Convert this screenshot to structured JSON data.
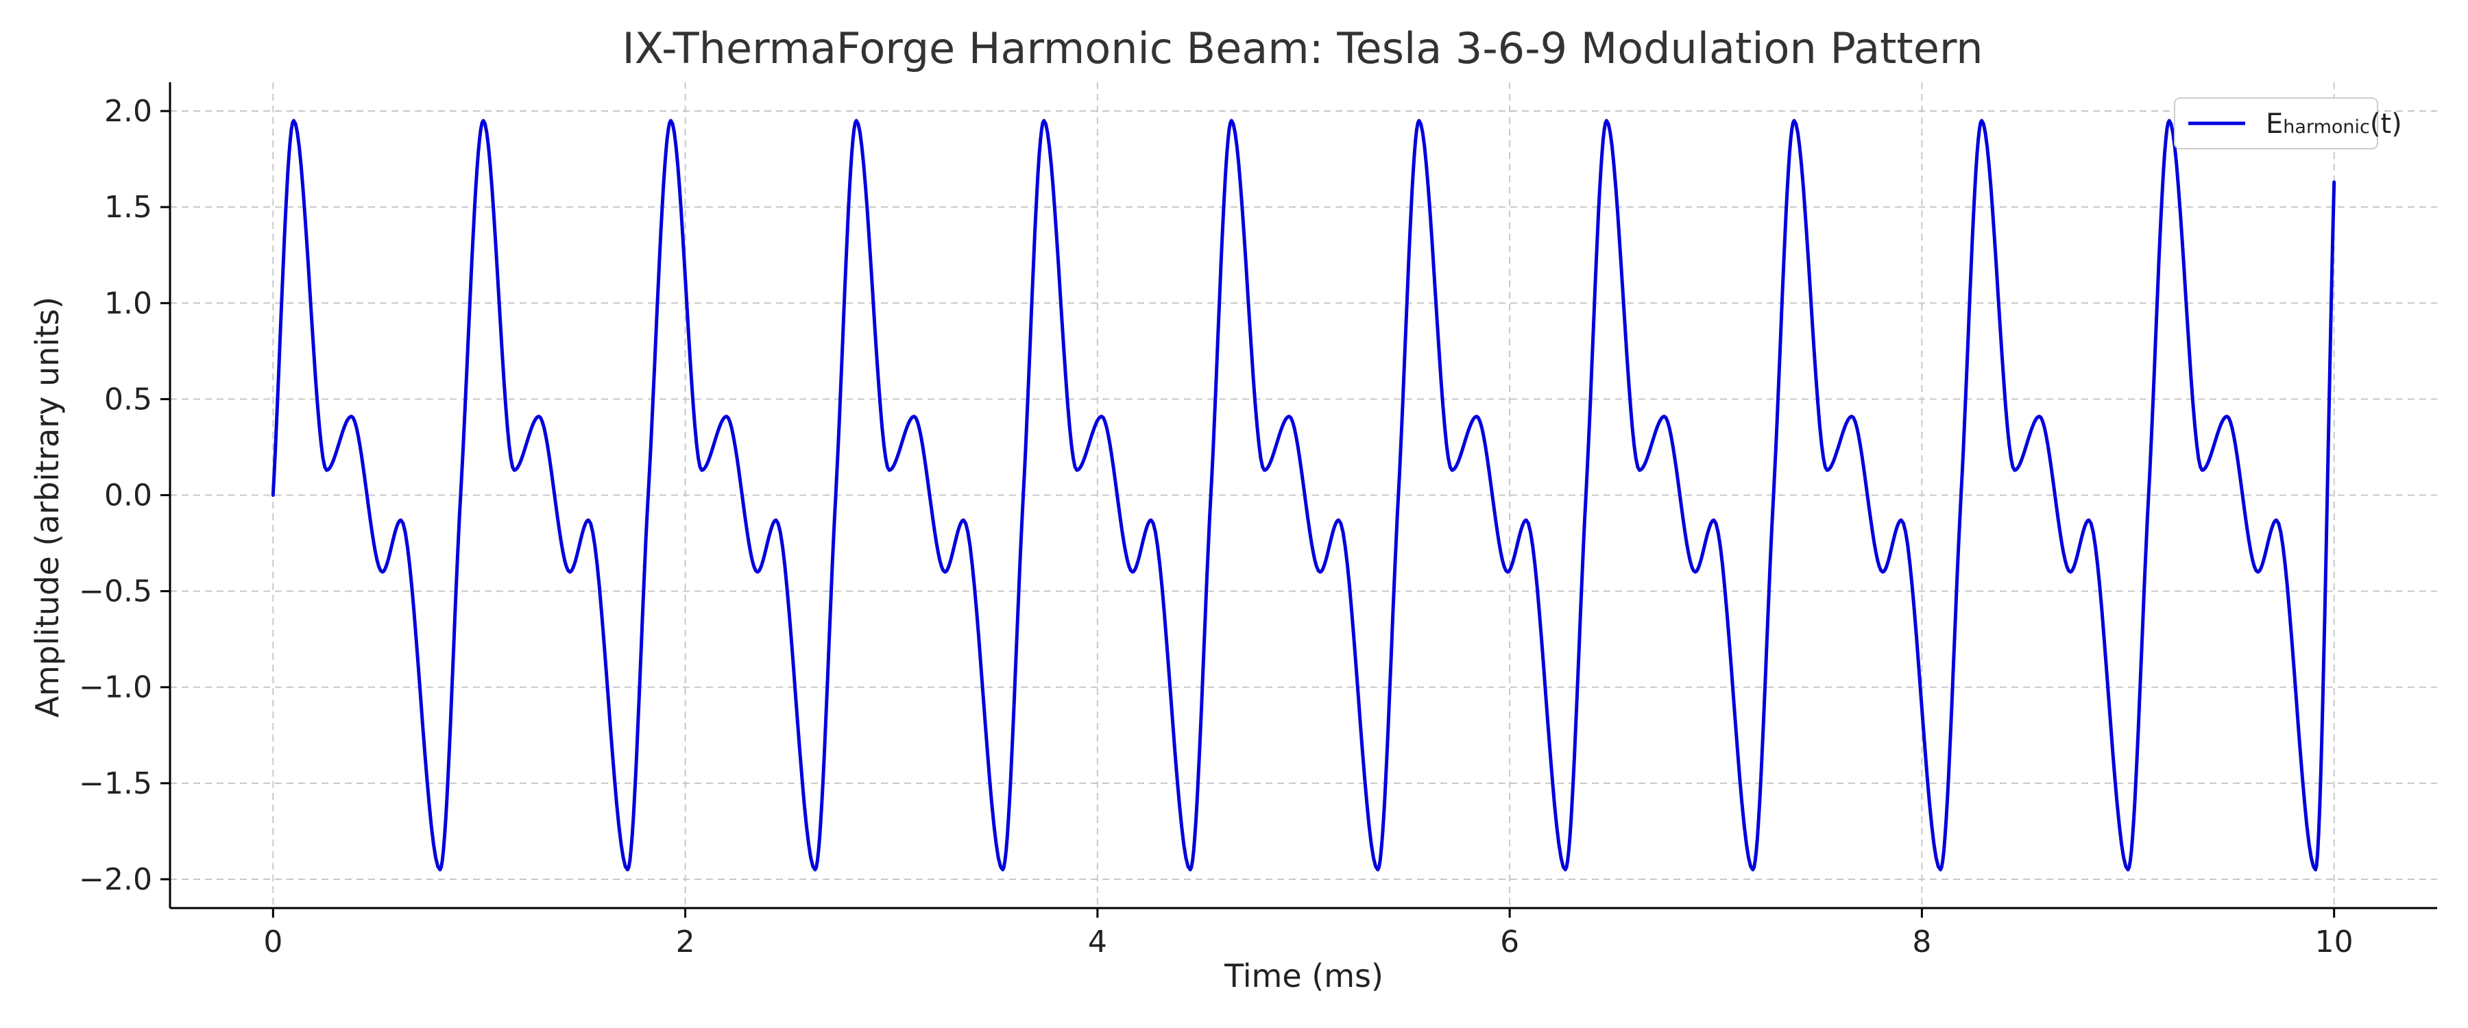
{
  "chart_data": {
    "type": "line",
    "title": "IX-ThermaForge Harmonic Beam: Tesla 3-6-9 Modulation Pattern",
    "xlabel": "Time (ms)",
    "ylabel": "Amplitude (arbitrary units)",
    "xlim": [
      -0.5,
      10.5
    ],
    "ylim": [
      -2.15,
      2.15
    ],
    "xticks": [
      0,
      2,
      4,
      6,
      8,
      10
    ],
    "xtick_labels": [
      "0",
      "2",
      "4",
      "6",
      "8",
      "10"
    ],
    "yticks": [
      2.0,
      1.5,
      1.0,
      0.5,
      0.0,
      -0.5,
      -1.0,
      -1.5,
      -2.0
    ],
    "ytick_labels": [
      "2.0",
      "1.5",
      "1.0",
      "0.5",
      "0.0",
      "−0.5",
      "−1.0",
      "−1.5",
      "−2.0"
    ],
    "grid": true,
    "legend_position": "top-right",
    "series": [
      {
        "name": "E",
        "name_sub": "harmonic",
        "name_tail": "(t)",
        "color": "#0000dd",
        "x": [
          0,
          0.1,
          0.26,
          0.38,
          0.53,
          0.62,
          0.81,
          0.91,
          1.02,
          1.17,
          1.29,
          1.44,
          1.53,
          1.72,
          1.82,
          1.93,
          2.08,
          2.2,
          2.35,
          2.44,
          2.63,
          2.73,
          2.83,
          2.99,
          3.11,
          3.26,
          3.35,
          3.54,
          3.64,
          3.74,
          3.9,
          4.02,
          4.17,
          4.26,
          4.45,
          4.55,
          4.65,
          4.81,
          4.93,
          5.08,
          5.17,
          5.36,
          5.46,
          5.56,
          5.72,
          5.84,
          5.99,
          6.08,
          6.27,
          6.37,
          6.47,
          6.63,
          6.75,
          6.9,
          6.99,
          7.18,
          7.28,
          7.38,
          7.54,
          7.66,
          7.81,
          7.9,
          8.09,
          8.19,
          8.29,
          8.45,
          8.57,
          8.72,
          8.81,
          9.0,
          9.1,
          9.2,
          9.36,
          9.48,
          9.63,
          9.72,
          9.91,
          10.0
        ],
        "y": [
          0.0,
          1.95,
          0.13,
          0.41,
          -0.4,
          -0.13,
          -1.95,
          0.0,
          1.95,
          0.13,
          0.41,
          -0.4,
          -0.13,
          -1.95,
          0.0,
          1.95,
          0.13,
          0.41,
          -0.4,
          -0.13,
          -1.95,
          0.0,
          1.95,
          0.13,
          0.41,
          -0.4,
          -0.13,
          -1.95,
          0.0,
          1.95,
          0.13,
          0.41,
          -0.4,
          -0.13,
          -1.95,
          0.0,
          1.95,
          0.13,
          0.41,
          -0.4,
          -0.13,
          -1.95,
          0.0,
          1.95,
          0.13,
          0.41,
          -0.4,
          -0.13,
          -1.95,
          0.0,
          1.95,
          0.13,
          0.41,
          -0.4,
          -0.13,
          -1.95,
          0.0,
          1.95,
          0.13,
          0.41,
          -0.4,
          -0.13,
          -1.95,
          0.0,
          1.95,
          0.13,
          0.41,
          -0.4,
          -0.13,
          -1.95,
          0.0,
          1.95,
          0.13,
          0.41,
          -0.4,
          -0.13,
          -1.95,
          1.63
        ]
      }
    ]
  }
}
